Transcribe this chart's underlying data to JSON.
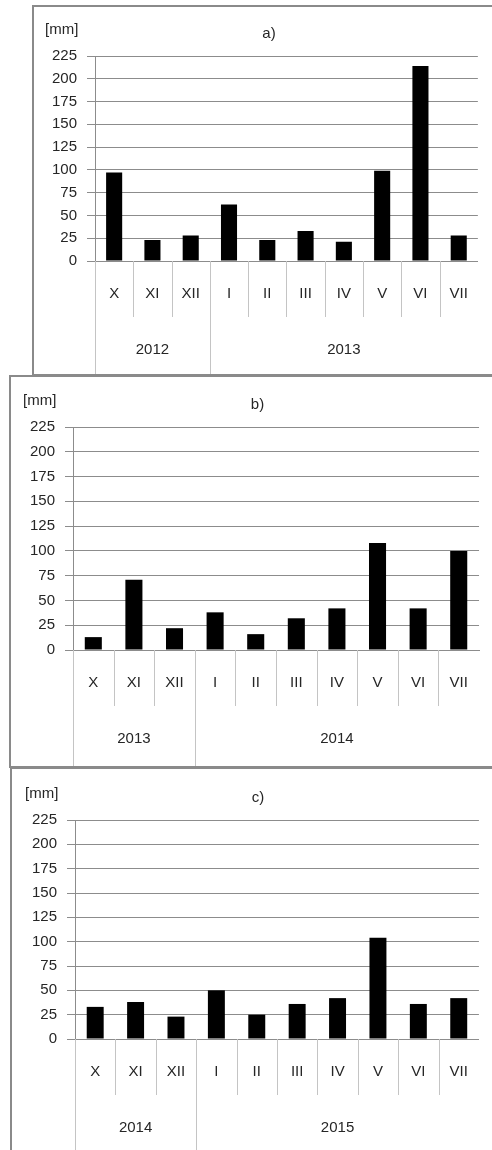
{
  "chart_data": [
    {
      "type": "bar",
      "title": "a)",
      "ylabel": "[mm]",
      "categories": [
        "X",
        "XI",
        "XII",
        "I",
        "II",
        "III",
        "IV",
        "V",
        "VI",
        "VII"
      ],
      "values": [
        97,
        23,
        28,
        62,
        23,
        33,
        21,
        99,
        214,
        28
      ],
      "color": "#000000",
      "ylim": [
        0,
        225
      ],
      "yticks": [
        0,
        25,
        50,
        75,
        100,
        125,
        150,
        175,
        200,
        225
      ],
      "grid": "y",
      "annotations": [
        "2012",
        "2013"
      ]
    },
    {
      "type": "bar",
      "title": "b)",
      "ylabel": "[mm]",
      "categories": [
        "X",
        "XI",
        "XII",
        "I",
        "II",
        "III",
        "IV",
        "V",
        "VI",
        "VII"
      ],
      "values": [
        13,
        71,
        22,
        38,
        16,
        32,
        42,
        108,
        42,
        100
      ],
      "color": "#000000",
      "ylim": [
        0,
        225
      ],
      "yticks": [
        0,
        25,
        50,
        75,
        100,
        125,
        150,
        175,
        200,
        225
      ],
      "grid": "y",
      "annotations": [
        "2013",
        "2014"
      ]
    },
    {
      "type": "bar",
      "title": "c)",
      "ylabel": "[mm]",
      "categories": [
        "X",
        "XI",
        "XII",
        "I",
        "II",
        "III",
        "IV",
        "V",
        "VI",
        "VII"
      ],
      "values": [
        33,
        38,
        23,
        50,
        25,
        36,
        42,
        104,
        36,
        42
      ],
      "color": "#000000",
      "ylim": [
        0,
        225
      ],
      "yticks": [
        0,
        25,
        50,
        75,
        100,
        125,
        150,
        175,
        200,
        225
      ],
      "grid": "y",
      "annotations": [
        "2014",
        "2015"
      ]
    }
  ]
}
